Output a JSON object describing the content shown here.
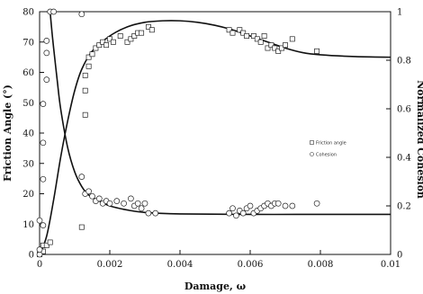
{
  "chart_data": {
    "type": "scatter",
    "xlabel": "Damage, ω",
    "ylabel": "Friction Angle (°)",
    "y2label": "Normalized Cohesion",
    "xlim": [
      0,
      0.01
    ],
    "ylim": [
      0,
      80
    ],
    "y2lim": [
      0,
      1
    ],
    "x_ticks": [
      "0",
      "0.002",
      "0.004",
      "0.006",
      "0.008",
      "0.01"
    ],
    "y_ticks": [
      "0",
      "10",
      "20",
      "30",
      "40",
      "50",
      "60",
      "70",
      "80"
    ],
    "y2_ticks": [
      "0",
      "0.2",
      "0.4",
      "0.6",
      "0.8",
      "1"
    ],
    "legend_position": "center-right",
    "series": [
      {
        "name": "Friction angle",
        "marker": "square",
        "axis": "left",
        "points": [
          [
            0.0,
            0
          ],
          [
            0.0001,
            1
          ],
          [
            0.0001,
            3
          ],
          [
            0.0002,
            3
          ],
          [
            0.0003,
            4
          ],
          [
            0.0012,
            9
          ],
          [
            0.0013,
            46
          ],
          [
            0.0013,
            54
          ],
          [
            0.0013,
            59
          ],
          [
            0.0014,
            62
          ],
          [
            0.0014,
            65
          ],
          [
            0.0015,
            66
          ],
          [
            0.0016,
            68
          ],
          [
            0.0017,
            69
          ],
          [
            0.0018,
            70
          ],
          [
            0.0019,
            69
          ],
          [
            0.002,
            71
          ],
          [
            0.0021,
            70
          ],
          [
            0.0023,
            72
          ],
          [
            0.0025,
            70
          ],
          [
            0.0026,
            71
          ],
          [
            0.0027,
            72
          ],
          [
            0.0028,
            73
          ],
          [
            0.0029,
            73
          ],
          [
            0.0031,
            75
          ],
          [
            0.0032,
            74
          ],
          [
            0.0054,
            74
          ],
          [
            0.0055,
            73
          ],
          [
            0.0057,
            74
          ],
          [
            0.0058,
            73
          ],
          [
            0.0059,
            72
          ],
          [
            0.0061,
            72
          ],
          [
            0.0062,
            71
          ],
          [
            0.0063,
            70
          ],
          [
            0.0064,
            72
          ],
          [
            0.0065,
            68
          ],
          [
            0.0066,
            69
          ],
          [
            0.0067,
            68
          ],
          [
            0.0068,
            67
          ],
          [
            0.0069,
            68
          ],
          [
            0.007,
            69
          ],
          [
            0.0072,
            71
          ],
          [
            0.0079,
            67
          ]
        ]
      },
      {
        "name": "Cohesion",
        "marker": "circle",
        "axis": "right",
        "points": [
          [
            0.0,
            0.0
          ],
          [
            0.0,
            0.14
          ],
          [
            0.0001,
            0.12
          ],
          [
            0.0001,
            0.31
          ],
          [
            0.0001,
            0.46
          ],
          [
            0.0001,
            0.62
          ],
          [
            0.0002,
            0.72
          ],
          [
            0.0002,
            0.83
          ],
          [
            0.0002,
            0.88
          ],
          [
            0.0003,
            1.0
          ],
          [
            0.0004,
            1.0
          ],
          [
            0.0,
            0.02
          ],
          [
            0.0012,
            0.99
          ],
          [
            0.0012,
            0.32
          ],
          [
            0.0013,
            0.25
          ],
          [
            0.0014,
            0.26
          ],
          [
            0.0015,
            0.24
          ],
          [
            0.0016,
            0.22
          ],
          [
            0.0017,
            0.23
          ],
          [
            0.0018,
            0.21
          ],
          [
            0.0019,
            0.22
          ],
          [
            0.002,
            0.21
          ],
          [
            0.0022,
            0.22
          ],
          [
            0.0024,
            0.21
          ],
          [
            0.0026,
            0.23
          ],
          [
            0.0027,
            0.2
          ],
          [
            0.0028,
            0.21
          ],
          [
            0.0029,
            0.19
          ],
          [
            0.003,
            0.21
          ],
          [
            0.0031,
            0.17
          ],
          [
            0.0033,
            0.17
          ],
          [
            0.0054,
            0.17
          ],
          [
            0.0055,
            0.19
          ],
          [
            0.0056,
            0.16
          ],
          [
            0.0057,
            0.18
          ],
          [
            0.0058,
            0.17
          ],
          [
            0.0059,
            0.19
          ],
          [
            0.006,
            0.2
          ],
          [
            0.0061,
            0.17
          ],
          [
            0.0062,
            0.18
          ],
          [
            0.0063,
            0.19
          ],
          [
            0.0064,
            0.2
          ],
          [
            0.0065,
            0.21
          ],
          [
            0.0066,
            0.2
          ],
          [
            0.0067,
            0.21
          ],
          [
            0.0068,
            0.21
          ],
          [
            0.007,
            0.2
          ],
          [
            0.0072,
            0.2
          ],
          [
            0.0079,
            0.21
          ]
        ]
      }
    ],
    "fit_curves": [
      {
        "axis": "left",
        "points": [
          [
            0.0,
            0
          ],
          [
            0.0002,
            6
          ],
          [
            0.0004,
            18
          ],
          [
            0.0006,
            32
          ],
          [
            0.0008,
            44
          ],
          [
            0.001,
            54
          ],
          [
            0.0012,
            61
          ],
          [
            0.0015,
            67
          ],
          [
            0.002,
            72
          ],
          [
            0.0025,
            75
          ],
          [
            0.003,
            76.5
          ],
          [
            0.0035,
            77
          ],
          [
            0.004,
            77
          ],
          [
            0.0045,
            76.5
          ],
          [
            0.005,
            75.5
          ],
          [
            0.0055,
            74
          ],
          [
            0.006,
            72
          ],
          [
            0.0065,
            70
          ],
          [
            0.007,
            68
          ],
          [
            0.0075,
            66.5
          ],
          [
            0.008,
            65.8
          ],
          [
            0.009,
            65.2
          ],
          [
            0.01,
            65
          ]
        ]
      },
      {
        "axis": "right",
        "points": [
          [
            0.0003,
            1.0
          ],
          [
            0.00035,
            0.92
          ],
          [
            0.0004,
            0.85
          ],
          [
            0.0005,
            0.72
          ],
          [
            0.0006,
            0.6
          ],
          [
            0.0008,
            0.44
          ],
          [
            0.001,
            0.34
          ],
          [
            0.0012,
            0.28
          ],
          [
            0.0014,
            0.245
          ],
          [
            0.0017,
            0.22
          ],
          [
            0.002,
            0.2
          ],
          [
            0.0025,
            0.183
          ],
          [
            0.003,
            0.173
          ],
          [
            0.004,
            0.167
          ],
          [
            0.006,
            0.165
          ],
          [
            0.008,
            0.165
          ],
          [
            0.01,
            0.165
          ]
        ]
      }
    ]
  },
  "legend": {
    "friction_label": "Friction angle",
    "cohesion_label": "Cohesion"
  },
  "labels": {
    "xlabel": "Damage, ω",
    "ylabel": "Friction Angle (°)",
    "y2label": "Normalized Cohesion"
  }
}
